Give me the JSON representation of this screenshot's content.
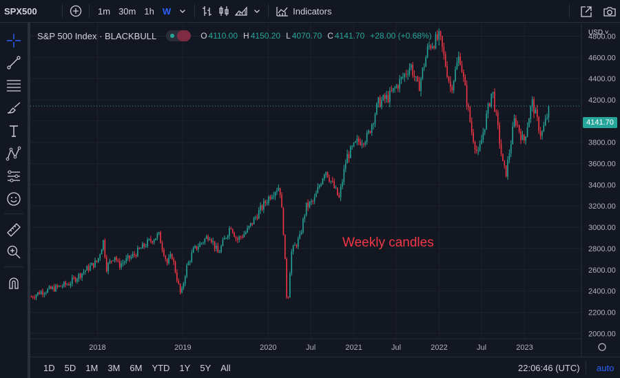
{
  "topbar": {
    "symbol": "SPX500",
    "add_symbol_icon": "plus-circle-icon",
    "timeframes": [
      {
        "label": "1m",
        "active": false
      },
      {
        "label": "30m",
        "active": false
      },
      {
        "label": "1h",
        "active": false
      },
      {
        "label": "W",
        "active": true
      }
    ],
    "indicators_label": "Indicators"
  },
  "legend": {
    "title": "S&P 500 Index · BLACKBULL",
    "open_key": "O",
    "open": "4110.00",
    "high_key": "H",
    "high": "4150.20",
    "low_key": "L",
    "low": "4070.70",
    "close_key": "C",
    "close": "4141.70",
    "change": "+28.00 (+0.68%)"
  },
  "currency": "USD",
  "price_tag": "4141.70",
  "annotation": "Weekly candles",
  "bottombar": {
    "ranges": [
      "1D",
      "5D",
      "1M",
      "3M",
      "6M",
      "YTD",
      "1Y",
      "5Y",
      "All"
    ],
    "clock": "22:06:46 (UTC)",
    "auto": "auto"
  },
  "colors": {
    "up": "#26a69a",
    "down": "#f23645",
    "accent": "#2962ff",
    "background": "#131722"
  },
  "chart_data": {
    "type": "candlestick",
    "interval": "weekly",
    "y_ticks": [
      2000,
      2200,
      2400,
      2600,
      2800,
      3000,
      3200,
      3400,
      3600,
      3800,
      4000,
      4200,
      4400,
      4600,
      4800
    ],
    "y_tick_labels": [
      "2000.00",
      "2200.00",
      "2400.00",
      "2600.00",
      "2800.00",
      "3000.00",
      "3200.00",
      "3400.00",
      "3600.00",
      "3800.00",
      "4000.00",
      "4200.00",
      "4400.00",
      "4600.00",
      "4800.00"
    ],
    "ylim": [
      1950,
      4920
    ],
    "x_tick_labels": [
      "2018",
      "2019",
      "2020",
      "Jul",
      "2021",
      "Jul",
      "2022",
      "Jul",
      "2023"
    ],
    "x_tick_dates": [
      "2018-01-01",
      "2019-01-01",
      "2020-01-01",
      "2020-07-01",
      "2021-01-01",
      "2021-07-01",
      "2022-01-01",
      "2022-07-01",
      "2023-01-01"
    ],
    "xlim": [
      "2017-03-20",
      "2023-09-01"
    ],
    "last_close": 4141.7,
    "grid": true,
    "close_series": [
      {
        "date": "2017-03-24",
        "close": 2345
      },
      {
        "date": "2017-05-01",
        "close": 2390
      },
      {
        "date": "2017-07-01",
        "close": 2425
      },
      {
        "date": "2017-09-01",
        "close": 2470
      },
      {
        "date": "2017-11-01",
        "close": 2580
      },
      {
        "date": "2018-01-01",
        "close": 2680
      },
      {
        "date": "2018-01-26",
        "close": 2870
      },
      {
        "date": "2018-02-09",
        "close": 2620
      },
      {
        "date": "2018-03-15",
        "close": 2740
      },
      {
        "date": "2018-04-01",
        "close": 2640
      },
      {
        "date": "2018-06-01",
        "close": 2730
      },
      {
        "date": "2018-08-01",
        "close": 2850
      },
      {
        "date": "2018-09-20",
        "close": 2930
      },
      {
        "date": "2018-10-26",
        "close": 2660
      },
      {
        "date": "2018-11-15",
        "close": 2740
      },
      {
        "date": "2018-12-24",
        "close": 2350
      },
      {
        "date": "2019-01-15",
        "close": 2610
      },
      {
        "date": "2019-02-15",
        "close": 2780
      },
      {
        "date": "2019-04-25",
        "close": 2930
      },
      {
        "date": "2019-06-01",
        "close": 2750
      },
      {
        "date": "2019-07-25",
        "close": 3020
      },
      {
        "date": "2019-08-20",
        "close": 2880
      },
      {
        "date": "2019-10-01",
        "close": 2960
      },
      {
        "date": "2019-11-15",
        "close": 3120
      },
      {
        "date": "2020-01-15",
        "close": 3320
      },
      {
        "date": "2020-02-19",
        "close": 3390
      },
      {
        "date": "2020-03-06",
        "close": 2970
      },
      {
        "date": "2020-03-23",
        "close": 2230
      },
      {
        "date": "2020-04-08",
        "close": 2760
      },
      {
        "date": "2020-05-15",
        "close": 2900
      },
      {
        "date": "2020-06-10",
        "close": 3190
      },
      {
        "date": "2020-07-15",
        "close": 3250
      },
      {
        "date": "2020-09-01",
        "close": 3550
      },
      {
        "date": "2020-10-30",
        "close": 3270
      },
      {
        "date": "2020-12-01",
        "close": 3660
      },
      {
        "date": "2021-01-15",
        "close": 3800
      },
      {
        "date": "2021-03-01",
        "close": 3850
      },
      {
        "date": "2021-04-15",
        "close": 4170
      },
      {
        "date": "2021-06-01",
        "close": 4230
      },
      {
        "date": "2021-08-01",
        "close": 4420
      },
      {
        "date": "2021-09-01",
        "close": 4530
      },
      {
        "date": "2021-10-04",
        "close": 4300
      },
      {
        "date": "2021-11-15",
        "close": 4700
      },
      {
        "date": "2022-01-03",
        "close": 4790
      },
      {
        "date": "2022-02-20",
        "close": 4300
      },
      {
        "date": "2022-03-29",
        "close": 4630
      },
      {
        "date": "2022-05-20",
        "close": 3900
      },
      {
        "date": "2022-06-16",
        "close": 3670
      },
      {
        "date": "2022-08-16",
        "close": 4300
      },
      {
        "date": "2022-09-30",
        "close": 3590
      },
      {
        "date": "2022-10-13",
        "close": 3500
      },
      {
        "date": "2022-11-20",
        "close": 4030
      },
      {
        "date": "2022-12-28",
        "close": 3800
      },
      {
        "date": "2023-02-02",
        "close": 4180
      },
      {
        "date": "2023-03-13",
        "close": 3860
      },
      {
        "date": "2023-04-20",
        "close": 4141.7
      }
    ]
  }
}
